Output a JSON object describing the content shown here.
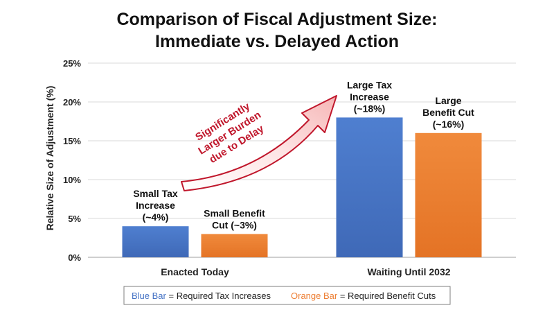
{
  "chart_data": {
    "type": "bar",
    "title": [
      "Comparison of Fiscal Adjustment Size:",
      "Immediate vs. Delayed Action"
    ],
    "ylabel": "Relative Size of Adjustment (%)",
    "ylim": [
      0,
      25
    ],
    "yticks": [
      0,
      5,
      10,
      15,
      20,
      25
    ],
    "ytick_labels": [
      "0%",
      "5%",
      "10%",
      "15%",
      "20%",
      "25%"
    ],
    "grid": true,
    "categories": [
      "Enacted Today",
      "Waiting Until 2032"
    ],
    "series": [
      {
        "values": [
          4,
          18
        ],
        "color": "#4472c4",
        "data_labels": [
          [
            "Small Tax",
            "Increase",
            "(~4%)"
          ],
          [
            "Large Tax",
            "Increase",
            "(~18%)"
          ]
        ]
      },
      {
        "values": [
          3,
          16
        ],
        "color": "#ed7d31",
        "data_labels": [
          [
            "Small Benefit",
            "Cut (~3%)"
          ],
          [
            "Large",
            "Benefit Cut",
            "(~16%)"
          ]
        ]
      }
    ],
    "annotation": {
      "lines": [
        "Significantly",
        "Larger Burden",
        "due to Delay"
      ],
      "color": "#c0162b"
    },
    "legend": {
      "position": "bottom",
      "items": [
        {
          "colored": "Blue Bar",
          "rest": " = Required Tax Increases",
          "color": "#4472c4"
        },
        {
          "colored": "Orange Bar",
          "rest": " = Required Benefit Cuts",
          "color": "#ed7d31"
        }
      ]
    }
  }
}
